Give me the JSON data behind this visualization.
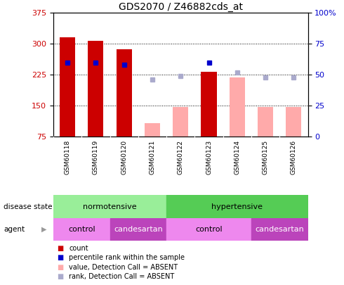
{
  "title": "GDS2070 / Z46882cds_at",
  "samples": [
    "GSM60118",
    "GSM60119",
    "GSM60120",
    "GSM60121",
    "GSM60122",
    "GSM60123",
    "GSM60124",
    "GSM60125",
    "GSM60126"
  ],
  "count_values": [
    315,
    307,
    287,
    null,
    null,
    232,
    null,
    null,
    null
  ],
  "count_color": "#cc0000",
  "absent_value_values": [
    null,
    null,
    null,
    108,
    148,
    null,
    218,
    148,
    148
  ],
  "absent_value_color": "#ffaaaa",
  "percentile_rank_values": [
    60,
    60,
    58,
    null,
    null,
    60,
    null,
    null,
    null
  ],
  "percentile_rank_color": "#0000cc",
  "absent_rank_values": [
    null,
    null,
    null,
    46,
    49,
    null,
    52,
    48,
    48
  ],
  "absent_rank_color": "#aaaacc",
  "ylim_left": [
    75,
    375
  ],
  "ylim_right": [
    0,
    100
  ],
  "left_yticks": [
    75,
    150,
    225,
    300,
    375
  ],
  "right_yticks": [
    0,
    25,
    50,
    75,
    100
  ],
  "normotensive_color": "#99ee99",
  "hypertensive_color": "#55cc55",
  "control_color": "#ee88ee",
  "candesartan_color": "#bb44bb",
  "legend_items": [
    "count",
    "percentile rank within the sample",
    "value, Detection Call = ABSENT",
    "rank, Detection Call = ABSENT"
  ],
  "legend_colors": [
    "#cc0000",
    "#0000cc",
    "#ffaaaa",
    "#aaaacc"
  ]
}
